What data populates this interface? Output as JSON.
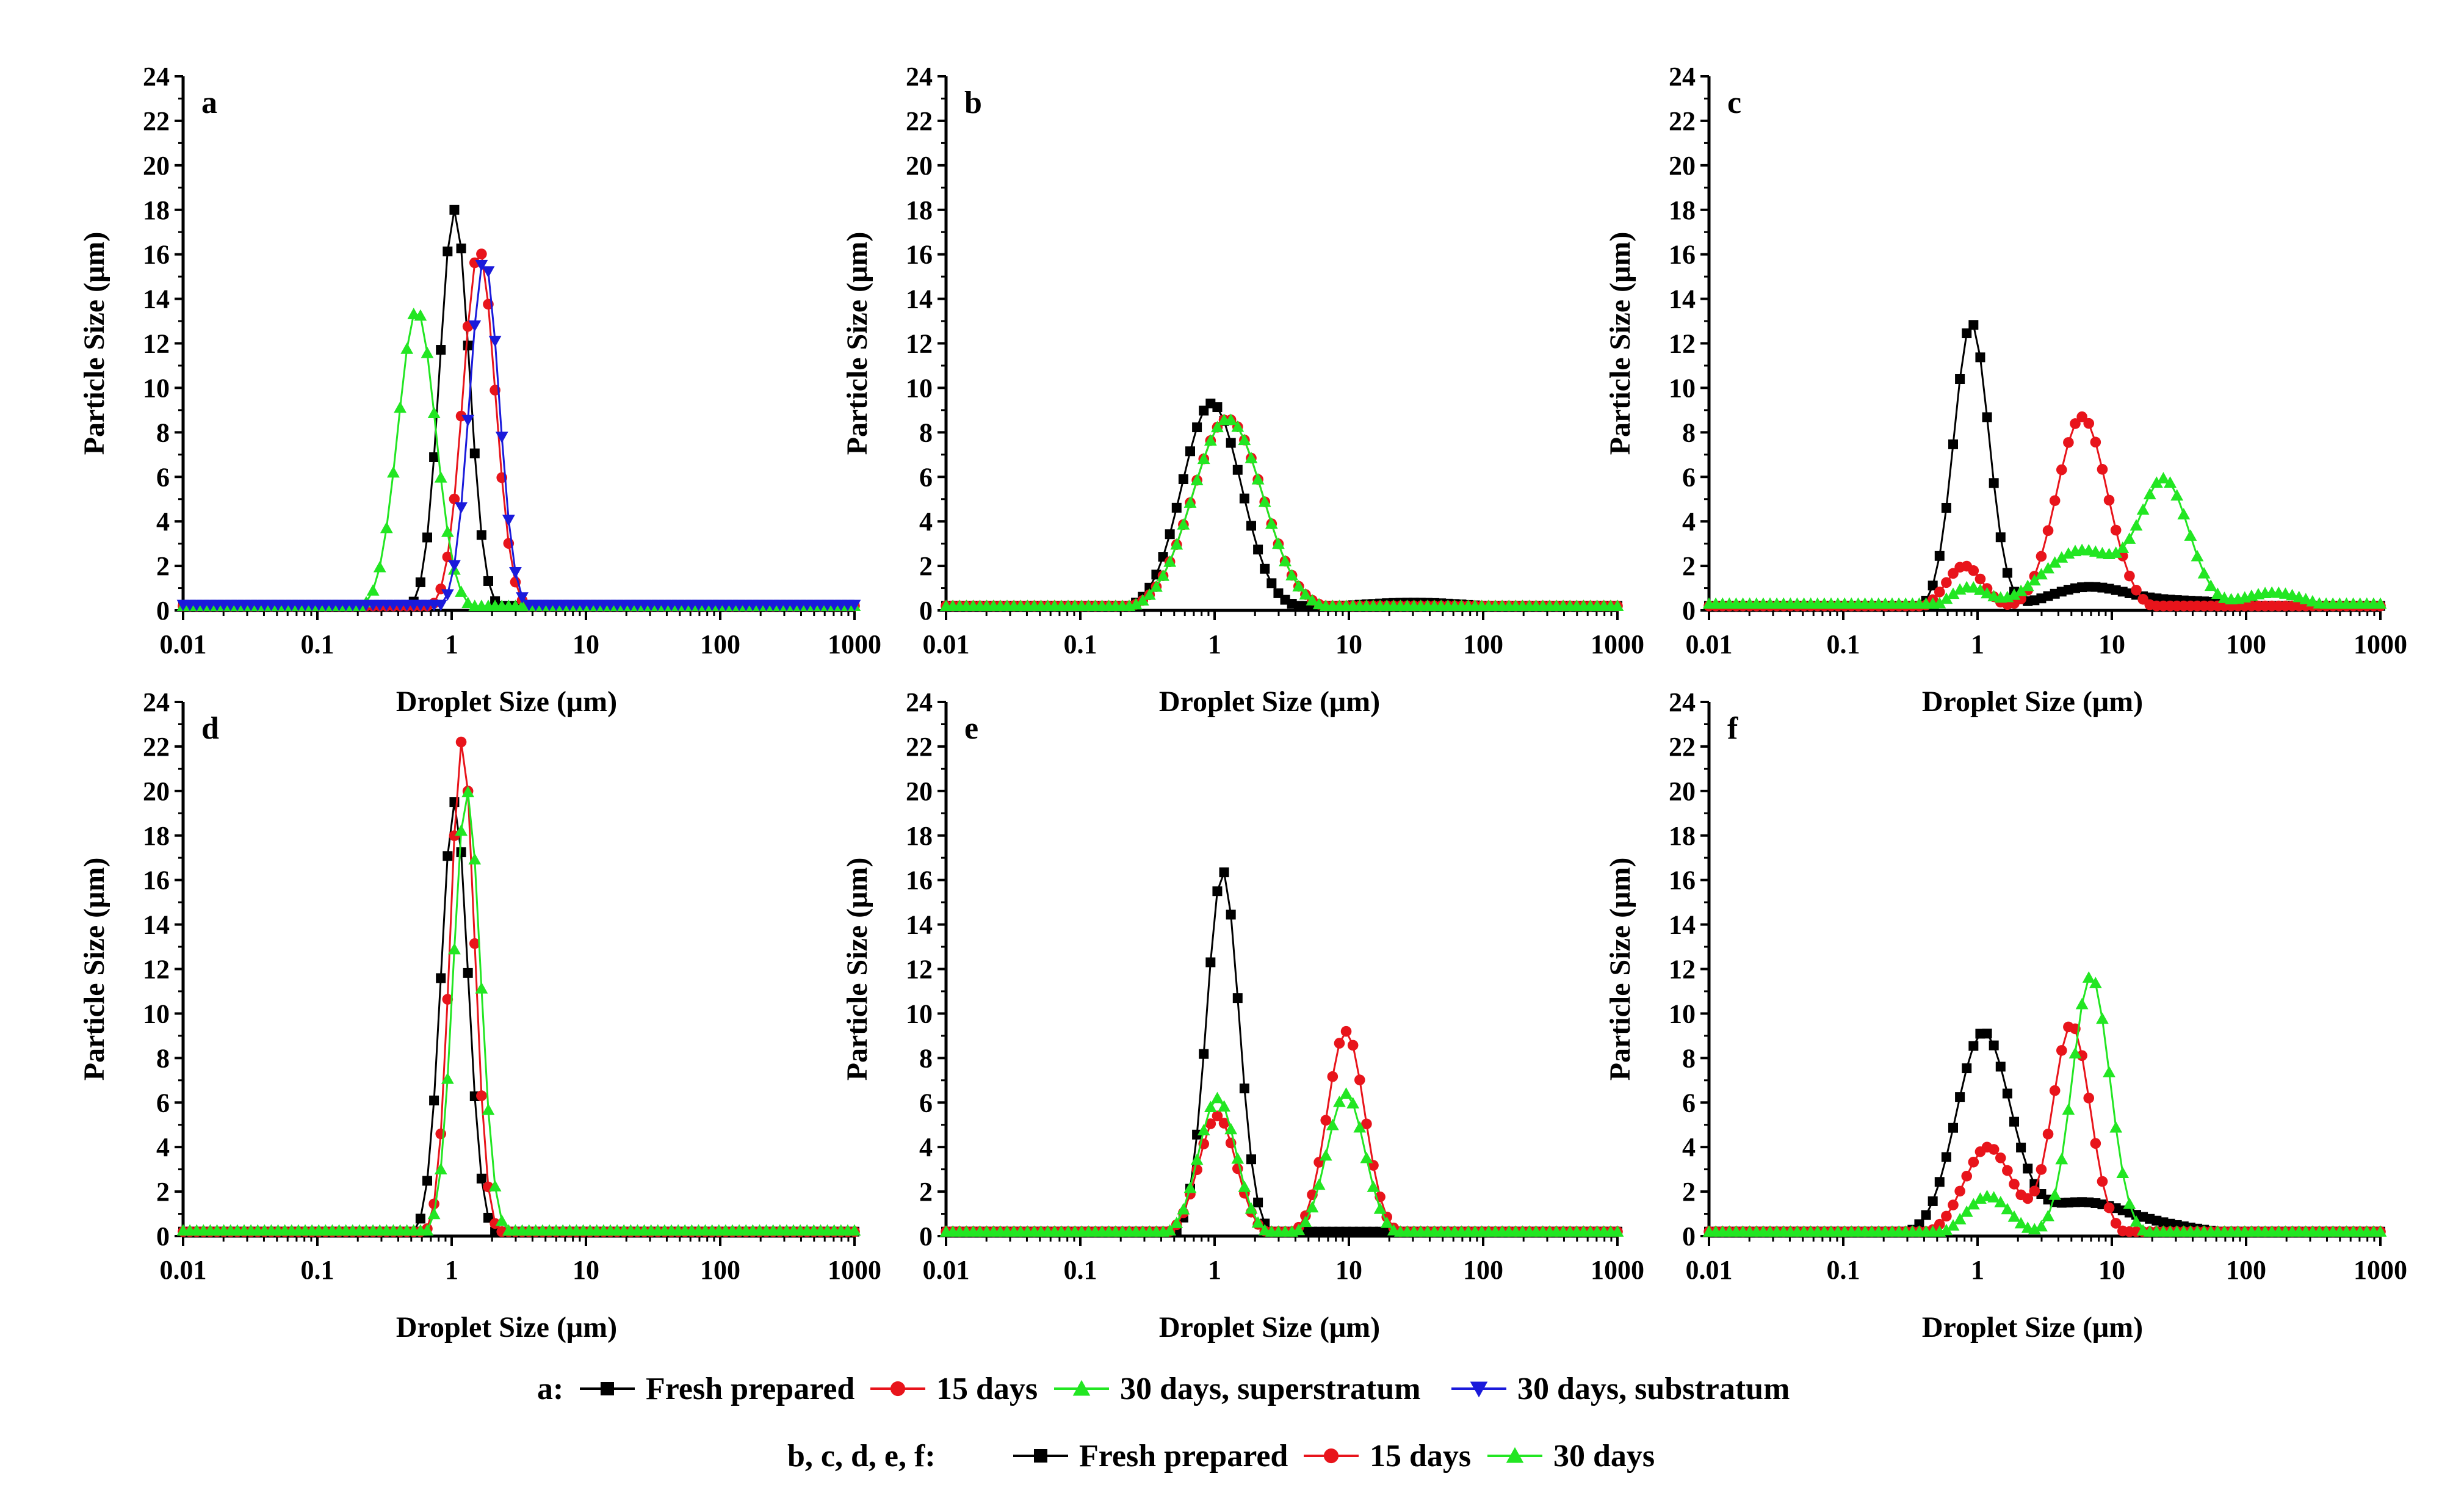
{
  "figure": {
    "legend_rows": [
      {
        "prefix": "a:",
        "entries": [
          {
            "label": "Fresh prepared",
            "color": "#000000",
            "marker": "square"
          },
          {
            "label": "15 days",
            "color": "#e8141b",
            "marker": "circle"
          },
          {
            "label": "30 days, superstratum",
            "color": "#22e622",
            "marker": "triangle-up"
          },
          {
            "label": "30 days, substratum",
            "color": "#1a1adb",
            "marker": "triangle-down"
          }
        ]
      },
      {
        "prefix": "b, c, d, e, f:",
        "entries": [
          {
            "label": "Fresh prepared",
            "color": "#000000",
            "marker": "square"
          },
          {
            "label": "15 days",
            "color": "#e8141b",
            "marker": "circle"
          },
          {
            "label": "30 days",
            "color": "#22e622",
            "marker": "triangle-up"
          }
        ]
      }
    ]
  },
  "chart_data": [
    {
      "type": "line",
      "panel": "a",
      "xlabel": "Droplet Size (μm)",
      "ylabel": "Particle Size (μm)",
      "xscale": "log",
      "xlim": [
        0.01,
        1000
      ],
      "ylim": [
        0,
        24
      ],
      "xticks": [
        0.01,
        0.1,
        1,
        10,
        100,
        1000
      ],
      "xtick_labels": [
        "0.01",
        "0.1",
        "1",
        "10",
        "100",
        "1000"
      ],
      "yticks": [
        0,
        2,
        4,
        6,
        8,
        10,
        12,
        14,
        16,
        18,
        20,
        22,
        24
      ],
      "ytick_labels": [
        "0",
        "2",
        "4",
        "6",
        "8",
        "10",
        "12",
        "14",
        "16",
        "18",
        "20",
        "22",
        "24"
      ],
      "series": [
        {
          "name": "Fresh prepared",
          "color": "#000000",
          "marker": "square",
          "peaks": [
            {
              "center": 1.05,
              "height": 18.0,
              "width": 0.11
            }
          ],
          "floor": 0.2
        },
        {
          "name": "15 days",
          "color": "#e8141b",
          "marker": "circle",
          "peaks": [
            {
              "center": 1.6,
              "height": 16.2,
              "width": 0.12
            }
          ],
          "floor": 0.2
        },
        {
          "name": "30 days, superstratum",
          "color": "#22e622",
          "marker": "triangle-up",
          "peaks": [
            {
              "center": 0.55,
              "height": 13.5,
              "width": 0.14
            }
          ],
          "floor": 0.2
        },
        {
          "name": "30 days, substratum",
          "color": "#1a1adb",
          "marker": "triangle-down",
          "peaks": [
            {
              "center": 1.75,
              "height": 15.8,
              "width": 0.11
            }
          ],
          "floor": 0.25
        }
      ]
    },
    {
      "type": "line",
      "panel": "b",
      "xlabel": "Droplet Size (μm)",
      "ylabel": "Particle Size (μm)",
      "xscale": "log",
      "xlim": [
        0.01,
        1000
      ],
      "ylim": [
        0,
        24
      ],
      "xticks": [
        0.01,
        0.1,
        1,
        10,
        100,
        1000
      ],
      "xtick_labels": [
        "0.01",
        "0.1",
        "1",
        "10",
        "100",
        "1000"
      ],
      "yticks": [
        0,
        2,
        4,
        6,
        8,
        10,
        12,
        14,
        16,
        18,
        20,
        22,
        24
      ],
      "ytick_labels": [
        "0",
        "2",
        "4",
        "6",
        "8",
        "10",
        "12",
        "14",
        "16",
        "18",
        "20",
        "22",
        "24"
      ],
      "series": [
        {
          "name": "Fresh prepared",
          "color": "#000000",
          "marker": "square",
          "peaks": [
            {
              "center": 0.95,
              "height": 9.3,
              "width": 0.22
            },
            {
              "center": 30,
              "height": 0.35,
              "width": 0.5
            }
          ],
          "floor": 0.2
        },
        {
          "name": "15 days",
          "color": "#e8141b",
          "marker": "circle",
          "peaks": [
            {
              "center": 1.25,
              "height": 8.6,
              "width": 0.26
            }
          ],
          "floor": 0.2
        },
        {
          "name": "30 days",
          "color": "#22e622",
          "marker": "triangle-up",
          "peaks": [
            {
              "center": 1.25,
              "height": 8.6,
              "width": 0.26
            }
          ],
          "floor": 0.2
        }
      ]
    },
    {
      "type": "line",
      "panel": "c",
      "xlabel": "Droplet Size (μm)",
      "ylabel": "Particle Size (μm)",
      "xscale": "log",
      "xlim": [
        0.01,
        1000
      ],
      "ylim": [
        0,
        24
      ],
      "xticks": [
        0.01,
        0.1,
        1,
        10,
        100,
        1000
      ],
      "xtick_labels": [
        "0.01",
        "0.1",
        "1",
        "10",
        "100",
        "1000"
      ],
      "yticks": [
        0,
        2,
        4,
        6,
        8,
        10,
        12,
        14,
        16,
        18,
        20,
        22,
        24
      ],
      "ytick_labels": [
        "0",
        "2",
        "4",
        "6",
        "8",
        "10",
        "12",
        "14",
        "16",
        "18",
        "20",
        "22",
        "24"
      ],
      "series": [
        {
          "name": "Fresh prepared",
          "color": "#000000",
          "marker": "square",
          "peaks": [
            {
              "center": 0.9,
              "height": 12.9,
              "width": 0.13
            },
            {
              "center": 6.5,
              "height": 1.0,
              "width": 0.3
            },
            {
              "center": 40,
              "height": 0.4,
              "width": 0.4
            }
          ],
          "floor": 0.2
        },
        {
          "name": "15 days",
          "color": "#e8141b",
          "marker": "circle",
          "peaks": [
            {
              "center": 0.8,
              "height": 2.0,
              "width": 0.14
            },
            {
              "center": 6.0,
              "height": 8.7,
              "width": 0.19
            }
          ],
          "floor": 0.2
        },
        {
          "name": "30 days",
          "color": "#22e622",
          "marker": "triangle-up",
          "peaks": [
            {
              "center": 0.85,
              "height": 1.0,
              "width": 0.14
            },
            {
              "center": 6.0,
              "height": 2.7,
              "width": 0.3
            },
            {
              "center": 25,
              "height": 5.6,
              "width": 0.18
            },
            {
              "center": 160,
              "height": 0.8,
              "width": 0.25
            }
          ],
          "floor": 0.3
        }
      ]
    },
    {
      "type": "line",
      "panel": "d",
      "xlabel": "Droplet Size (μm)",
      "ylabel": "Particle Size (μm)",
      "xscale": "log",
      "xlim": [
        0.01,
        1000
      ],
      "ylim": [
        0,
        24
      ],
      "xticks": [
        0.01,
        0.1,
        1,
        10,
        100,
        1000
      ],
      "xtick_labels": [
        "0.01",
        "0.1",
        "1",
        "10",
        "100",
        "1000"
      ],
      "yticks": [
        0,
        2,
        4,
        6,
        8,
        10,
        12,
        14,
        16,
        18,
        20,
        22,
        24
      ],
      "ytick_labels": [
        "0",
        "2",
        "4",
        "6",
        "8",
        "10",
        "12",
        "14",
        "16",
        "18",
        "20",
        "22",
        "24"
      ],
      "series": [
        {
          "name": "Fresh prepared",
          "color": "#000000",
          "marker": "square",
          "peaks": [
            {
              "center": 1.05,
              "height": 19.5,
              "width": 0.1
            }
          ],
          "floor": 0.2
        },
        {
          "name": "15 days",
          "color": "#e8141b",
          "marker": "circle",
          "peaks": [
            {
              "center": 1.2,
              "height": 22.3,
              "width": 0.09
            }
          ],
          "floor": 0.2
        },
        {
          "name": "30 days",
          "color": "#22e622",
          "marker": "triangle-up",
          "peaks": [
            {
              "center": 1.3,
              "height": 20.0,
              "width": 0.1
            }
          ],
          "floor": 0.25
        }
      ]
    },
    {
      "type": "line",
      "panel": "e",
      "xlabel": "Droplet Size (μm)",
      "ylabel": "Particle Size (μm)",
      "xscale": "log",
      "xlim": [
        0.01,
        1000
      ],
      "ylim": [
        0,
        24
      ],
      "xticks": [
        0.01,
        0.1,
        1,
        10,
        100,
        1000
      ],
      "xtick_labels": [
        "0.01",
        "0.1",
        "1",
        "10",
        "100",
        "1000"
      ],
      "yticks": [
        0,
        2,
        4,
        6,
        8,
        10,
        12,
        14,
        16,
        18,
        20,
        22,
        24
      ],
      "ytick_labels": [
        "0",
        "2",
        "4",
        "6",
        "8",
        "10",
        "12",
        "14",
        "16",
        "18",
        "20",
        "22",
        "24"
      ],
      "series": [
        {
          "name": "Fresh prepared",
          "color": "#000000",
          "marker": "square",
          "peaks": [
            {
              "center": 1.15,
              "height": 16.4,
              "width": 0.12
            },
            {
              "center": 10,
              "height": 0.15,
              "width": 0.3
            }
          ],
          "floor": 0.2
        },
        {
          "name": "15 days",
          "color": "#e8141b",
          "marker": "circle",
          "peaks": [
            {
              "center": 1.05,
              "height": 5.4,
              "width": 0.14
            },
            {
              "center": 9.5,
              "height": 9.2,
              "width": 0.14
            }
          ],
          "floor": 0.2
        },
        {
          "name": "30 days",
          "color": "#22e622",
          "marker": "triangle-up",
          "peaks": [
            {
              "center": 1.05,
              "height": 6.2,
              "width": 0.14
            },
            {
              "center": 9.5,
              "height": 6.4,
              "width": 0.14
            }
          ],
          "floor": 0.2
        }
      ]
    },
    {
      "type": "line",
      "panel": "f",
      "xlabel": "Droplet Size (μm)",
      "ylabel": "Particle Size (μm)",
      "xscale": "log",
      "xlim": [
        0.01,
        1000
      ],
      "ylim": [
        0,
        24
      ],
      "xticks": [
        0.01,
        0.1,
        1,
        10,
        100,
        1000
      ],
      "xtick_labels": [
        "0.01",
        "0.1",
        "1",
        "10",
        "100",
        "1000"
      ],
      "yticks": [
        0,
        2,
        4,
        6,
        8,
        10,
        12,
        14,
        16,
        18,
        20,
        22,
        24
      ],
      "ytick_labels": [
        "0",
        "2",
        "4",
        "6",
        "8",
        "10",
        "12",
        "14",
        "16",
        "18",
        "20",
        "22",
        "24"
      ],
      "series": [
        {
          "name": "Fresh prepared",
          "color": "#000000",
          "marker": "square",
          "peaks": [
            {
              "center": 1.1,
              "height": 9.0,
              "width": 0.2
            },
            {
              "center": 6.0,
              "height": 1.5,
              "width": 0.35
            },
            {
              "center": 30,
              "height": 0.3,
              "width": 0.3
            }
          ],
          "floor": 0.2
        },
        {
          "name": "15 days",
          "color": "#e8141b",
          "marker": "circle",
          "peaks": [
            {
              "center": 1.2,
              "height": 4.0,
              "width": 0.18
            },
            {
              "center": 5.0,
              "height": 9.5,
              "width": 0.14
            }
          ],
          "floor": 0.2
        },
        {
          "name": "30 days",
          "color": "#22e622",
          "marker": "triangle-up",
          "peaks": [
            {
              "center": 1.2,
              "height": 1.8,
              "width": 0.16
            },
            {
              "center": 7.0,
              "height": 11.7,
              "width": 0.14
            }
          ],
          "floor": 0.2
        }
      ]
    }
  ]
}
